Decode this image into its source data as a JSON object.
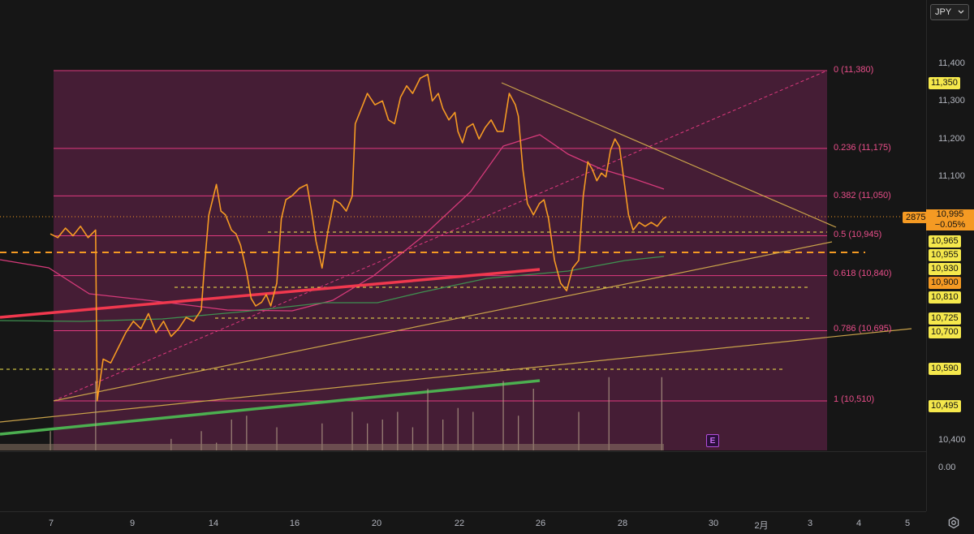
{
  "currency": {
    "label": "JPY",
    "chevron": "chevron-down-icon"
  },
  "fib_levels": [
    {
      "ratio": "0",
      "price": "11,380",
      "text": "0 (11,380)"
    },
    {
      "ratio": "0.236",
      "price": "11,175",
      "text": "0.236 (11,175)"
    },
    {
      "ratio": "0.382",
      "price": "11,050",
      "text": "0.382 (11,050)"
    },
    {
      "ratio": "0.5",
      "price": "10,945",
      "text": "0.5 (10,945)"
    },
    {
      "ratio": "0.618",
      "price": "10,840",
      "text": "0.618 (10,840)"
    },
    {
      "ratio": "0.786",
      "price": "10,695",
      "text": "0.786 (10,695)"
    },
    {
      "ratio": "1",
      "price": "10,510",
      "text": "1 (10,510)"
    }
  ],
  "price_axis": {
    "ticks": [
      "11,400",
      "11,300",
      "11,200",
      "11,100",
      "10,400",
      "0.00"
    ],
    "tags": {
      "t11350": "11,350",
      "t10965": "10,965",
      "t10955": "10,955",
      "t10930": "10,930",
      "t10900": "10,900",
      "t10810": "10,810",
      "t10725": "10,725",
      "t10700": "10,700",
      "t10590": "10,590",
      "t10495": "10,495"
    },
    "last_price": "10,995",
    "last_change": "−0.05%",
    "bar_count": "2875"
  },
  "time_axis": {
    "labels": [
      "7",
      "9",
      "14",
      "16",
      "20",
      "22",
      "26",
      "28",
      "30",
      "2月",
      "3",
      "4",
      "5"
    ]
  },
  "earnings_badge": "E",
  "colors": {
    "fib_zone": "#4a1e38",
    "fib_line": "#e0397f",
    "candles": "#f59a23",
    "accent_yellow": "#f5e84c",
    "ma_red": "#f0384e",
    "ma_green": "#4caf50"
  },
  "chart_data": {
    "type": "line",
    "ylim": [
      10380,
      11420
    ],
    "x_ticks": [
      "7",
      "9",
      "14",
      "16",
      "20",
      "22",
      "26",
      "28",
      "30",
      "2月",
      "3",
      "4",
      "5"
    ],
    "price_series": [
      [
        0,
        10950
      ],
      [
        0.5,
        10940
      ],
      [
        1,
        10965
      ],
      [
        1.5,
        10945
      ],
      [
        2,
        10970
      ],
      [
        2.5,
        10940
      ],
      [
        3,
        10960
      ],
      [
        3.1,
        10510
      ],
      [
        3.5,
        10620
      ],
      [
        4,
        10610
      ],
      [
        4.5,
        10650
      ],
      [
        5,
        10690
      ],
      [
        5.5,
        10720
      ],
      [
        6,
        10700
      ],
      [
        6.5,
        10740
      ],
      [
        7,
        10690
      ],
      [
        7.5,
        10720
      ],
      [
        8,
        10680
      ],
      [
        8.5,
        10700
      ],
      [
        9,
        10730
      ],
      [
        9.5,
        10720
      ],
      [
        10,
        10750
      ],
      [
        10.2,
        10860
      ],
      [
        10.5,
        11000
      ],
      [
        11,
        11080
      ],
      [
        11.3,
        11010
      ],
      [
        11.6,
        11000
      ],
      [
        12,
        10960
      ],
      [
        12.3,
        10950
      ],
      [
        12.6,
        10920
      ],
      [
        13,
        10850
      ],
      [
        13.3,
        10780
      ],
      [
        13.6,
        10760
      ],
      [
        14,
        10770
      ],
      [
        14.3,
        10790
      ],
      [
        14.6,
        10760
      ],
      [
        15,
        10820
      ],
      [
        15.3,
        10990
      ],
      [
        15.6,
        11040
      ],
      [
        16,
        11050
      ],
      [
        16.5,
        11070
      ],
      [
        17,
        11080
      ],
      [
        17.3,
        11010
      ],
      [
        17.6,
        10930
      ],
      [
        18,
        10860
      ],
      [
        18.4,
        10960
      ],
      [
        18.8,
        11040
      ],
      [
        19.2,
        11030
      ],
      [
        19.6,
        11010
      ],
      [
        20,
        11050
      ],
      [
        20.2,
        11240
      ],
      [
        20.6,
        11280
      ],
      [
        21,
        11320
      ],
      [
        21.5,
        11290
      ],
      [
        22,
        11300
      ],
      [
        22.4,
        11250
      ],
      [
        22.8,
        11240
      ],
      [
        23.2,
        11310
      ],
      [
        23.6,
        11340
      ],
      [
        24,
        11320
      ],
      [
        24.5,
        11360
      ],
      [
        25,
        11370
      ],
      [
        25.3,
        11300
      ],
      [
        25.7,
        11320
      ],
      [
        26,
        11280
      ],
      [
        26.4,
        11250
      ],
      [
        26.8,
        11270
      ],
      [
        27,
        11220
      ],
      [
        27.3,
        11190
      ],
      [
        27.6,
        11230
      ],
      [
        28,
        11240
      ],
      [
        28.4,
        11200
      ],
      [
        28.8,
        11230
      ],
      [
        29.2,
        11250
      ],
      [
        29.6,
        11220
      ],
      [
        30,
        11220
      ],
      [
        30.4,
        11320
      ],
      [
        30.8,
        11290
      ],
      [
        31,
        11260
      ],
      [
        31.3,
        11120
      ],
      [
        31.6,
        11030
      ],
      [
        32,
        11000
      ],
      [
        32.4,
        11030
      ],
      [
        32.7,
        11040
      ],
      [
        33,
        10990
      ],
      [
        33.4,
        10880
      ],
      [
        33.8,
        10820
      ],
      [
        34.2,
        10800
      ],
      [
        34.6,
        10860
      ],
      [
        35,
        10880
      ],
      [
        35.3,
        11050
      ],
      [
        35.6,
        11140
      ],
      [
        35.9,
        11120
      ],
      [
        36.2,
        11090
      ],
      [
        36.5,
        11110
      ],
      [
        36.8,
        11100
      ],
      [
        37.1,
        11170
      ],
      [
        37.4,
        11200
      ],
      [
        37.7,
        11180
      ],
      [
        38,
        11090
      ],
      [
        38.3,
        11000
      ],
      [
        38.6,
        10960
      ],
      [
        39,
        10980
      ],
      [
        39.4,
        10970
      ],
      [
        39.8,
        10980
      ],
      [
        40.2,
        10970
      ],
      [
        40.6,
        10990
      ],
      [
        40.8,
        10995
      ]
    ],
    "volume_bars": [
      [
        0,
        0.25
      ],
      [
        3,
        0.9
      ],
      [
        8,
        0.15
      ],
      [
        10,
        0.25
      ],
      [
        11,
        0.1
      ],
      [
        12,
        0.4
      ],
      [
        13,
        0.45
      ],
      [
        15,
        0.3
      ],
      [
        18,
        0.35
      ],
      [
        20,
        0.5
      ],
      [
        21,
        0.35
      ],
      [
        22,
        0.4
      ],
      [
        23,
        0.5
      ],
      [
        24,
        0.3
      ],
      [
        25,
        0.8
      ],
      [
        26,
        0.4
      ],
      [
        27,
        0.55
      ],
      [
        28,
        0.5
      ],
      [
        30,
        0.9
      ],
      [
        31,
        0.45
      ],
      [
        32,
        0.8
      ],
      [
        35,
        0.5
      ],
      [
        37,
        0.95
      ],
      [
        40.5,
        0.95
      ]
    ]
  }
}
